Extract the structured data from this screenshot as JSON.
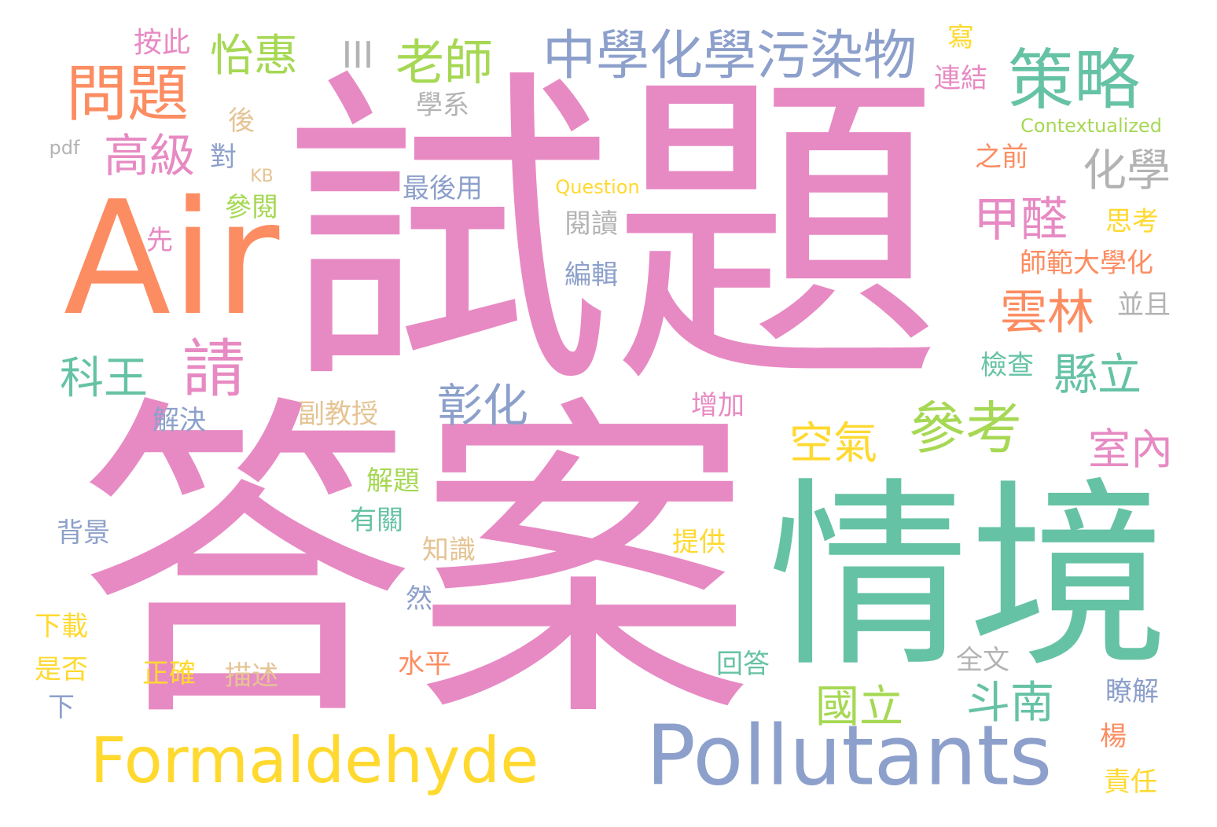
{
  "palette": {
    "pink": "#e78ac3",
    "green": "#66c2a5",
    "orange": "#fc8d62",
    "blue": "#8da0cb",
    "lime": "#a6d854",
    "yellow": "#ffd92f",
    "tan": "#e5c494",
    "gray": "#b3b3b3"
  },
  "words": [
    {
      "text": "試題",
      "color": "pink"
    },
    {
      "text": "答案",
      "color": "pink"
    },
    {
      "text": "情境",
      "color": "green"
    },
    {
      "text": "Air",
      "color": "orange"
    },
    {
      "text": "Pollutants",
      "color": "blue"
    },
    {
      "text": "Formaldehyde",
      "color": "yellow"
    },
    {
      "text": "中學化學污染物",
      "color": "blue"
    },
    {
      "text": "策略",
      "color": "green"
    },
    {
      "text": "問題",
      "color": "orange"
    },
    {
      "text": "老師",
      "color": "lime"
    },
    {
      "text": "怡惠",
      "color": "lime"
    },
    {
      "text": "III",
      "color": "gray"
    },
    {
      "text": "高級",
      "color": "pink"
    },
    {
      "text": "化學",
      "color": "gray"
    },
    {
      "text": "甲醛",
      "color": "pink"
    },
    {
      "text": "雲林",
      "color": "orange"
    },
    {
      "text": "請",
      "color": "pink"
    },
    {
      "text": "科王",
      "color": "green"
    },
    {
      "text": "縣立",
      "color": "green"
    },
    {
      "text": "參考",
      "color": "lime"
    },
    {
      "text": "彰化",
      "color": "blue"
    },
    {
      "text": "空氣",
      "color": "yellow"
    },
    {
      "text": "室內",
      "color": "pink"
    },
    {
      "text": "國立",
      "color": "lime"
    },
    {
      "text": "斗南",
      "color": "green"
    },
    {
      "text": "按此",
      "color": "pink"
    },
    {
      "text": "寫",
      "color": "yellow"
    },
    {
      "text": "連結",
      "color": "pink"
    },
    {
      "text": "學系",
      "color": "gray"
    },
    {
      "text": "後",
      "color": "tan"
    },
    {
      "text": "Contextualized",
      "color": "lime"
    },
    {
      "text": "pdf",
      "color": "gray"
    },
    {
      "text": "對",
      "color": "blue"
    },
    {
      "text": "KB",
      "color": "tan"
    },
    {
      "text": "之前",
      "color": "orange"
    },
    {
      "text": "最後用",
      "color": "blue"
    },
    {
      "text": "Question",
      "color": "yellow"
    },
    {
      "text": "參閱",
      "color": "lime"
    },
    {
      "text": "思考",
      "color": "yellow"
    },
    {
      "text": "閱讀",
      "color": "gray"
    },
    {
      "text": "先",
      "color": "pink"
    },
    {
      "text": "師範大學化",
      "color": "orange"
    },
    {
      "text": "編輯",
      "color": "blue"
    },
    {
      "text": "並且",
      "color": "gray"
    },
    {
      "text": "檢查",
      "color": "green"
    },
    {
      "text": "解決",
      "color": "blue"
    },
    {
      "text": "副教授",
      "color": "tan"
    },
    {
      "text": "增加",
      "color": "pink"
    },
    {
      "text": "解題",
      "color": "lime"
    },
    {
      "text": "有關",
      "color": "green"
    },
    {
      "text": "背景",
      "color": "blue"
    },
    {
      "text": "知識",
      "color": "tan"
    },
    {
      "text": "提供",
      "color": "yellow"
    },
    {
      "text": "然",
      "color": "blue"
    },
    {
      "text": "下載",
      "color": "yellow"
    },
    {
      "text": "回答",
      "color": "green"
    },
    {
      "text": "全文",
      "color": "gray"
    },
    {
      "text": "水平",
      "color": "orange"
    },
    {
      "text": "是否",
      "color": "yellow"
    },
    {
      "text": "正確",
      "color": "yellow"
    },
    {
      "text": "描述",
      "color": "tan"
    },
    {
      "text": "瞭解",
      "color": "blue"
    },
    {
      "text": "下",
      "color": "blue"
    },
    {
      "text": "楊",
      "color": "orange"
    },
    {
      "text": "責任",
      "color": "yellow"
    }
  ]
}
